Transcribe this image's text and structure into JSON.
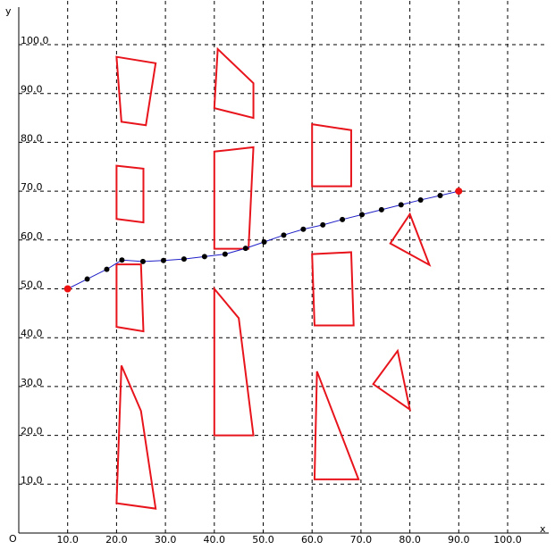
{
  "axes": {
    "x_label": "x",
    "y_label": "y",
    "origin_label": "O",
    "x_ticks": [
      "10.0",
      "20.0",
      "30.0",
      "40.0",
      "50.0",
      "60.0",
      "70.0",
      "80.0",
      "90.0",
      "100.0"
    ],
    "y_ticks": [
      "10.0",
      "20.0",
      "30.0",
      "40.0",
      "50.0",
      "60.0",
      "70.0",
      "80.0",
      "90.0",
      "100.0"
    ]
  },
  "chart_data": {
    "type": "scatter",
    "xlim": [
      0,
      108
    ],
    "ylim": [
      0,
      109
    ],
    "grid": true,
    "polygon_color": "#e8141c",
    "path_color": "#2020c8",
    "endpoint_color": "#ee1111",
    "polygons": [
      [
        [
          20,
          97.5
        ],
        [
          28,
          96.2
        ],
        [
          26,
          83.5
        ],
        [
          21,
          84.2
        ]
      ],
      [
        [
          40.7,
          99.1
        ],
        [
          48,
          92.1
        ],
        [
          48,
          85
        ],
        [
          40,
          87
        ]
      ],
      [
        [
          60,
          83.7
        ],
        [
          68,
          82.5
        ],
        [
          68,
          71
        ],
        [
          60,
          71
        ]
      ],
      [
        [
          20,
          75.2
        ],
        [
          25.5,
          74.6
        ],
        [
          25.5,
          63.6
        ],
        [
          20,
          64.3
        ]
      ],
      [
        [
          40,
          78.1
        ],
        [
          48,
          79
        ],
        [
          47,
          58.2
        ],
        [
          40,
          58.2
        ]
      ],
      [
        [
          80,
          65.3
        ],
        [
          76,
          59.3
        ],
        [
          84,
          54.9
        ]
      ],
      [
        [
          20,
          55
        ],
        [
          25,
          55
        ],
        [
          25.5,
          41.3
        ],
        [
          20,
          42.2
        ]
      ],
      [
        [
          60,
          57.1
        ],
        [
          68,
          57.5
        ],
        [
          68.5,
          42.5
        ],
        [
          60.5,
          42.5
        ]
      ],
      [
        [
          40,
          50
        ],
        [
          45,
          44
        ],
        [
          48,
          20
        ],
        [
          40,
          20
        ]
      ],
      [
        [
          21,
          34.3
        ],
        [
          25,
          25
        ],
        [
          28,
          5
        ],
        [
          20,
          6.1
        ]
      ],
      [
        [
          61,
          33.1
        ],
        [
          69.5,
          11
        ],
        [
          60.5,
          11
        ]
      ],
      [
        [
          77.5,
          37.3
        ],
        [
          72.5,
          30.5
        ],
        [
          80,
          25.3
        ]
      ]
    ],
    "path": [
      [
        10,
        50
      ],
      [
        14,
        52
      ],
      [
        18,
        54
      ],
      [
        21.1,
        55.9
      ],
      [
        25.4,
        55.6
      ],
      [
        29.6,
        55.8
      ],
      [
        33.8,
        56.1
      ],
      [
        38,
        56.6
      ],
      [
        42.2,
        57.1
      ],
      [
        46.4,
        58.3
      ],
      [
        50.2,
        59.6
      ],
      [
        54.2,
        61
      ],
      [
        58.2,
        62.2
      ],
      [
        62.2,
        63.1
      ],
      [
        66.2,
        64.2
      ],
      [
        70.2,
        65.2
      ],
      [
        74.2,
        66.2
      ],
      [
        78.2,
        67.2
      ],
      [
        82.2,
        68.2
      ],
      [
        86.2,
        69.1
      ],
      [
        90,
        70
      ]
    ],
    "endpoints": [
      [
        10,
        50
      ],
      [
        90,
        70
      ]
    ]
  }
}
